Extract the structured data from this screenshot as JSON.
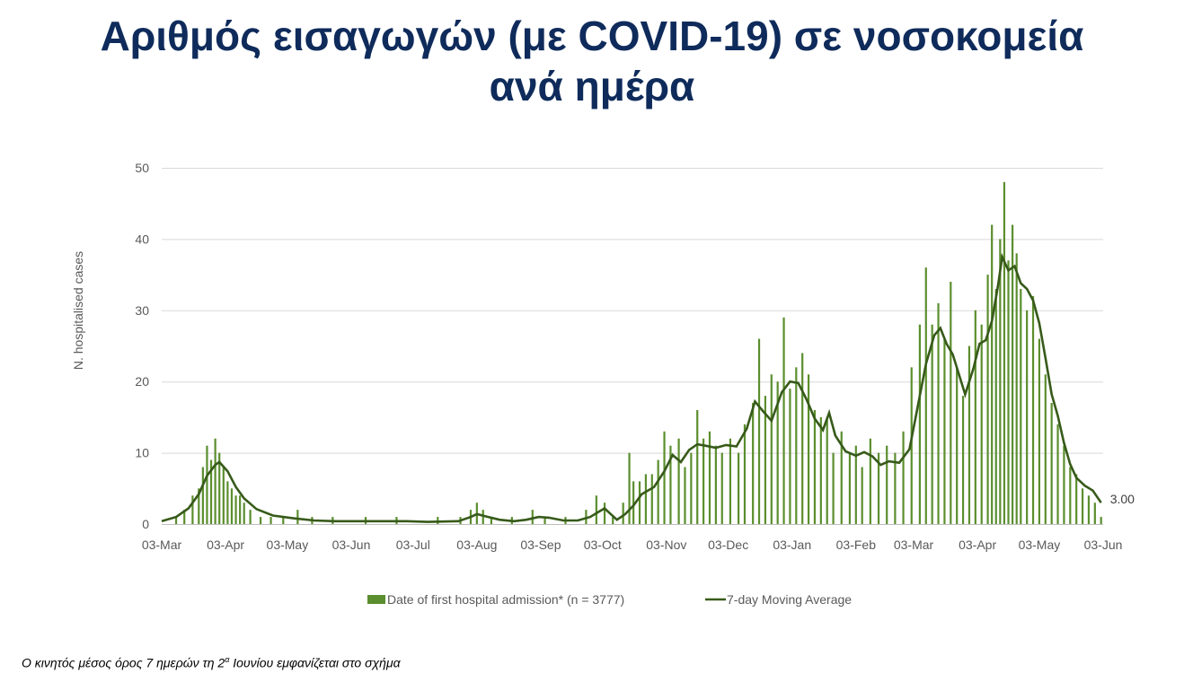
{
  "page": {
    "title_line1": "Αριθμός εισαγωγών (με COVID-19) σε νοσοκομεία",
    "title_line2": "ανά ημέρα",
    "footnote_before": "Ο κινητός μέσος όρος 7 ημερών τη 2",
    "footnote_sup": "α",
    "footnote_after": " Ιουνίου εμφανίζεται στο σχήμα"
  },
  "colors": {
    "title": "#0f2b5b",
    "bars": "#5b8e2e",
    "line": "#375a1a",
    "grid": "#d9d9d9",
    "text": "#595959"
  },
  "chart_data": {
    "type": "bar",
    "ylabel": "N. hospitalised cases",
    "ylim": [
      0,
      50
    ],
    "yticks": [
      0,
      10,
      20,
      30,
      40,
      50
    ],
    "x_range": [
      "2020-03-03",
      "2021-06-03"
    ],
    "xticks": [
      {
        "date": "2020-03-03",
        "label": "03-Mar"
      },
      {
        "date": "2020-04-03",
        "label": "03-Apr"
      },
      {
        "date": "2020-05-03",
        "label": "03-May"
      },
      {
        "date": "2020-06-03",
        "label": "03-Jun"
      },
      {
        "date": "2020-07-03",
        "label": "03-Jul"
      },
      {
        "date": "2020-08-03",
        "label": "03-Aug"
      },
      {
        "date": "2020-09-03",
        "label": "03-Sep"
      },
      {
        "date": "2020-10-03",
        "label": "03-Oct"
      },
      {
        "date": "2020-11-03",
        "label": "03-Nov"
      },
      {
        "date": "2020-12-03",
        "label": "03-Dec"
      },
      {
        "date": "2021-01-03",
        "label": "03-Jan"
      },
      {
        "date": "2021-02-03",
        "label": "03-Feb"
      },
      {
        "date": "2021-03-03",
        "label": "03-Mar"
      },
      {
        "date": "2021-04-03",
        "label": "03-Apr"
      },
      {
        "date": "2021-05-03",
        "label": "03-May"
      },
      {
        "date": "2021-06-03",
        "label": "03-Jun"
      }
    ],
    "series": [
      {
        "name": "Date of first hospital admission* (n = 3777)",
        "kind": "bar",
        "note": "daily values, approximate",
        "points": [
          [
            "2020-03-10",
            1
          ],
          [
            "2020-03-14",
            2
          ],
          [
            "2020-03-18",
            4
          ],
          [
            "2020-03-21",
            5
          ],
          [
            "2020-03-23",
            8
          ],
          [
            "2020-03-25",
            11
          ],
          [
            "2020-03-27",
            9
          ],
          [
            "2020-03-29",
            12
          ],
          [
            "2020-03-31",
            10
          ],
          [
            "2020-04-02",
            8
          ],
          [
            "2020-04-04",
            6
          ],
          [
            "2020-04-06",
            5
          ],
          [
            "2020-04-08",
            4
          ],
          [
            "2020-04-10",
            4
          ],
          [
            "2020-04-12",
            3
          ],
          [
            "2020-04-15",
            2
          ],
          [
            "2020-04-20",
            1
          ],
          [
            "2020-04-25",
            1
          ],
          [
            "2020-05-01",
            1
          ],
          [
            "2020-05-08",
            2
          ],
          [
            "2020-05-15",
            1
          ],
          [
            "2020-05-25",
            1
          ],
          [
            "2020-06-10",
            1
          ],
          [
            "2020-06-25",
            1
          ],
          [
            "2020-07-15",
            1
          ],
          [
            "2020-07-26",
            1
          ],
          [
            "2020-07-31",
            2
          ],
          [
            "2020-08-03",
            3
          ],
          [
            "2020-08-06",
            2
          ],
          [
            "2020-08-10",
            1
          ],
          [
            "2020-08-20",
            1
          ],
          [
            "2020-08-30",
            2
          ],
          [
            "2020-09-05",
            1
          ],
          [
            "2020-09-15",
            1
          ],
          [
            "2020-09-25",
            2
          ],
          [
            "2020-09-30",
            4
          ],
          [
            "2020-10-04",
            3
          ],
          [
            "2020-10-08",
            1
          ],
          [
            "2020-10-13",
            3
          ],
          [
            "2020-10-16",
            10
          ],
          [
            "2020-10-18",
            6
          ],
          [
            "2020-10-21",
            6
          ],
          [
            "2020-10-24",
            7
          ],
          [
            "2020-10-27",
            7
          ],
          [
            "2020-10-30",
            9
          ],
          [
            "2020-11-02",
            13
          ],
          [
            "2020-11-05",
            11
          ],
          [
            "2020-11-09",
            12
          ],
          [
            "2020-11-12",
            8
          ],
          [
            "2020-11-15",
            10
          ],
          [
            "2020-11-18",
            16
          ],
          [
            "2020-11-21",
            12
          ],
          [
            "2020-11-24",
            13
          ],
          [
            "2020-11-27",
            11
          ],
          [
            "2020-11-30",
            10
          ],
          [
            "2020-12-04",
            12
          ],
          [
            "2020-12-08",
            10
          ],
          [
            "2020-12-11",
            14
          ],
          [
            "2020-12-15",
            17
          ],
          [
            "2020-12-18",
            26
          ],
          [
            "2020-12-21",
            18
          ],
          [
            "2020-12-24",
            21
          ],
          [
            "2020-12-27",
            20
          ],
          [
            "2020-12-30",
            29
          ],
          [
            "2021-01-02",
            19
          ],
          [
            "2021-01-05",
            22
          ],
          [
            "2021-01-08",
            24
          ],
          [
            "2021-01-11",
            21
          ],
          [
            "2021-01-14",
            16
          ],
          [
            "2021-01-17",
            15
          ],
          [
            "2021-01-20",
            15
          ],
          [
            "2021-01-23",
            10
          ],
          [
            "2021-01-27",
            13
          ],
          [
            "2021-01-31",
            10
          ],
          [
            "2021-02-03",
            11
          ],
          [
            "2021-02-06",
            8
          ],
          [
            "2021-02-10",
            12
          ],
          [
            "2021-02-14",
            10
          ],
          [
            "2021-02-18",
            11
          ],
          [
            "2021-02-22",
            10
          ],
          [
            "2021-02-26",
            13
          ],
          [
            "2021-03-02",
            22
          ],
          [
            "2021-03-06",
            28
          ],
          [
            "2021-03-09",
            36
          ],
          [
            "2021-03-12",
            28
          ],
          [
            "2021-03-15",
            31
          ],
          [
            "2021-03-18",
            26
          ],
          [
            "2021-03-21",
            34
          ],
          [
            "2021-03-24",
            22
          ],
          [
            "2021-03-27",
            18
          ],
          [
            "2021-03-30",
            25
          ],
          [
            "2021-04-02",
            30
          ],
          [
            "2021-04-05",
            28
          ],
          [
            "2021-04-08",
            35
          ],
          [
            "2021-04-10",
            42
          ],
          [
            "2021-04-12",
            33
          ],
          [
            "2021-04-14",
            40
          ],
          [
            "2021-04-16",
            48
          ],
          [
            "2021-04-18",
            37
          ],
          [
            "2021-04-20",
            42
          ],
          [
            "2021-04-22",
            38
          ],
          [
            "2021-04-24",
            33
          ],
          [
            "2021-04-27",
            30
          ],
          [
            "2021-04-30",
            32
          ],
          [
            "2021-05-03",
            26
          ],
          [
            "2021-05-06",
            21
          ],
          [
            "2021-05-09",
            17
          ],
          [
            "2021-05-12",
            14
          ],
          [
            "2021-05-15",
            11
          ],
          [
            "2021-05-18",
            8
          ],
          [
            "2021-05-21",
            7
          ],
          [
            "2021-05-24",
            5
          ],
          [
            "2021-05-27",
            4
          ],
          [
            "2021-05-30",
            3
          ],
          [
            "2021-06-02",
            1
          ]
        ]
      },
      {
        "name": "7-day Moving Average",
        "kind": "line",
        "note": "approximate",
        "points": [
          [
            "2020-03-03",
            0.4
          ],
          [
            "2020-03-10",
            1
          ],
          [
            "2020-03-16",
            2.2
          ],
          [
            "2020-03-21",
            4.2
          ],
          [
            "2020-03-25",
            6.8
          ],
          [
            "2020-03-29",
            8.3
          ],
          [
            "2020-03-31",
            8.7
          ],
          [
            "2020-04-04",
            7.4
          ],
          [
            "2020-04-08",
            5.2
          ],
          [
            "2020-04-12",
            3.6
          ],
          [
            "2020-04-18",
            2.1
          ],
          [
            "2020-04-26",
            1.2
          ],
          [
            "2020-05-06",
            0.8
          ],
          [
            "2020-05-16",
            0.5
          ],
          [
            "2020-05-26",
            0.4
          ],
          [
            "2020-06-10",
            0.4
          ],
          [
            "2020-06-30",
            0.4
          ],
          [
            "2020-07-10",
            0.3
          ],
          [
            "2020-07-25",
            0.4
          ],
          [
            "2020-07-31",
            1.0
          ],
          [
            "2020-08-03",
            1.4
          ],
          [
            "2020-08-07",
            1.1
          ],
          [
            "2020-08-14",
            0.6
          ],
          [
            "2020-08-21",
            0.4
          ],
          [
            "2020-08-27",
            0.6
          ],
          [
            "2020-09-02",
            1.0
          ],
          [
            "2020-09-07",
            0.9
          ],
          [
            "2020-09-14",
            0.5
          ],
          [
            "2020-09-21",
            0.5
          ],
          [
            "2020-09-27",
            1.0
          ],
          [
            "2020-10-01",
            1.7
          ],
          [
            "2020-10-04",
            2.2
          ],
          [
            "2020-10-07",
            1.4
          ],
          [
            "2020-10-10",
            0.6
          ],
          [
            "2020-10-14",
            1.4
          ],
          [
            "2020-10-18",
            2.6
          ],
          [
            "2020-10-22",
            4.2
          ],
          [
            "2020-10-28",
            5.2
          ],
          [
            "2020-11-02",
            7.4
          ],
          [
            "2020-11-06",
            9.7
          ],
          [
            "2020-11-10",
            8.7
          ],
          [
            "2020-11-14",
            10.4
          ],
          [
            "2020-11-18",
            11.2
          ],
          [
            "2020-11-22",
            11.0
          ],
          [
            "2020-11-27",
            10.7
          ],
          [
            "2020-12-02",
            11.1
          ],
          [
            "2020-12-07",
            10.9
          ],
          [
            "2020-12-12",
            13.4
          ],
          [
            "2020-12-16",
            17.2
          ],
          [
            "2020-12-20",
            15.8
          ],
          [
            "2020-12-24",
            14.5
          ],
          [
            "2020-12-29",
            18.5
          ],
          [
            "2021-01-02",
            20.0
          ],
          [
            "2021-01-06",
            19.8
          ],
          [
            "2021-01-10",
            17.5
          ],
          [
            "2021-01-14",
            14.8
          ],
          [
            "2021-01-18",
            13.2
          ],
          [
            "2021-01-21",
            15.6
          ],
          [
            "2021-01-24",
            12.4
          ],
          [
            "2021-01-29",
            10.2
          ],
          [
            "2021-02-03",
            9.6
          ],
          [
            "2021-02-07",
            10.1
          ],
          [
            "2021-02-11",
            9.5
          ],
          [
            "2021-02-15",
            8.3
          ],
          [
            "2021-02-19",
            8.8
          ],
          [
            "2021-02-24",
            8.6
          ],
          [
            "2021-03-01",
            10.5
          ],
          [
            "2021-03-05",
            16.5
          ],
          [
            "2021-03-09",
            22.5
          ],
          [
            "2021-03-13",
            26.5
          ],
          [
            "2021-03-16",
            27.5
          ],
          [
            "2021-03-19",
            25.3
          ],
          [
            "2021-03-22",
            23.8
          ],
          [
            "2021-03-25",
            21.0
          ],
          [
            "2021-03-28",
            18.2
          ],
          [
            "2021-04-01",
            21.8
          ],
          [
            "2021-04-04",
            25.3
          ],
          [
            "2021-04-07",
            25.8
          ],
          [
            "2021-04-10",
            28.5
          ],
          [
            "2021-04-13",
            33.5
          ],
          [
            "2021-04-15",
            37.5
          ],
          [
            "2021-04-18",
            35.6
          ],
          [
            "2021-04-21",
            36.2
          ],
          [
            "2021-04-24",
            33.8
          ],
          [
            "2021-04-27",
            33.0
          ],
          [
            "2021-04-30",
            31.4
          ],
          [
            "2021-05-03",
            28.2
          ],
          [
            "2021-05-06",
            23.3
          ],
          [
            "2021-05-09",
            18.2
          ],
          [
            "2021-05-12",
            15.2
          ],
          [
            "2021-05-15",
            11.4
          ],
          [
            "2021-05-18",
            8.4
          ],
          [
            "2021-05-21",
            6.5
          ],
          [
            "2021-05-25",
            5.4
          ],
          [
            "2021-05-29",
            4.7
          ],
          [
            "2021-06-02",
            3.0
          ]
        ]
      }
    ],
    "annotations": [
      {
        "text": "3.00",
        "date": "2021-06-02",
        "value": 3.0
      }
    ],
    "grid": true,
    "legend_position": "bottom-center"
  }
}
